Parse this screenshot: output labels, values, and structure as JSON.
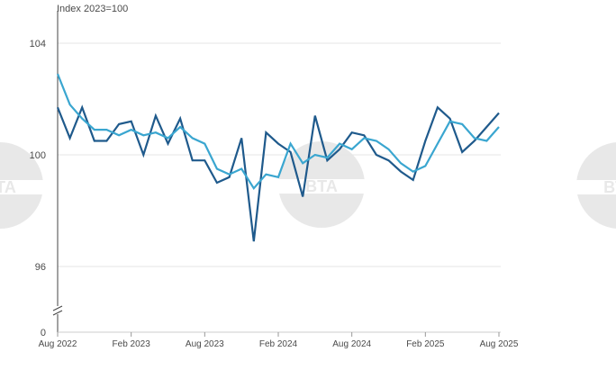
{
  "chart_data": {
    "type": "line",
    "ylabel": "Index 2023=100",
    "xlabel": "",
    "title": "",
    "ylim": [
      0,
      105
    ],
    "y_axis_break": true,
    "y_ticks": [
      {
        "value": 104,
        "label": "104"
      },
      {
        "value": 100,
        "label": "100"
      },
      {
        "value": 96,
        "label": "96"
      },
      {
        "value": 0,
        "label": "0"
      }
    ],
    "x_ticks": [
      "Aug 2022",
      "Feb 2023",
      "Aug 2023",
      "Feb 2024",
      "Aug 2024",
      "Feb 2025",
      "Aug 2025"
    ],
    "x_tick_index": [
      0,
      6,
      12,
      18,
      24,
      30,
      36
    ],
    "x": [
      "2022-08",
      "2022-09",
      "2022-10",
      "2022-11",
      "2022-12",
      "2023-01",
      "2023-02",
      "2023-03",
      "2023-04",
      "2023-05",
      "2023-06",
      "2023-07",
      "2023-08",
      "2023-09",
      "2023-10",
      "2023-11",
      "2023-12",
      "2024-01",
      "2024-02",
      "2024-03",
      "2024-04",
      "2024-05",
      "2024-06",
      "2024-07",
      "2024-08",
      "2024-09",
      "2024-10",
      "2024-11",
      "2024-12",
      "2025-01",
      "2025-02",
      "2025-03",
      "2025-04",
      "2025-05",
      "2025-06",
      "2025-07",
      "2025-08"
    ],
    "grid": true,
    "legend": "none",
    "series": [
      {
        "color": "#1f5a8c",
        "values": [
          101.7,
          100.6,
          101.7,
          100.5,
          100.5,
          101.1,
          101.2,
          100.0,
          101.4,
          100.4,
          101.3,
          99.8,
          99.8,
          99.0,
          99.2,
          100.6,
          96.9,
          100.8,
          100.4,
          100.1,
          98.5,
          101.4,
          99.8,
          100.2,
          100.8,
          100.7,
          100.0,
          99.8,
          99.4,
          99.1,
          100.5,
          101.7,
          101.3,
          100.1,
          100.5,
          101.0,
          101.5
        ]
      },
      {
        "color": "#3aa6d0",
        "values": [
          102.9,
          101.8,
          101.3,
          100.9,
          100.9,
          100.7,
          100.9,
          100.7,
          100.8,
          100.6,
          101.0,
          100.6,
          100.4,
          99.5,
          99.3,
          99.5,
          98.8,
          99.3,
          99.2,
          100.4,
          99.7,
          100.0,
          99.9,
          100.4,
          100.2,
          100.6,
          100.5,
          100.2,
          99.7,
          99.4,
          99.6,
          100.4,
          101.2,
          101.1,
          100.6,
          100.5,
          101.0
        ]
      }
    ]
  },
  "watermark": {
    "text": "BTA"
  }
}
